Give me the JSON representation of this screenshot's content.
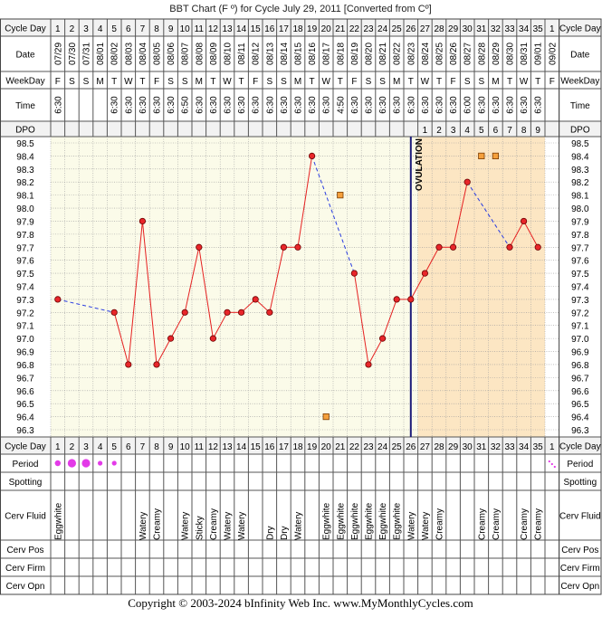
{
  "title": "BBT Chart (F º) for Cycle July 29, 2011  [Converted from Cº]",
  "footer": "Copyright © 2003-2024 bInfinity Web Inc.     www.MyMonthlyCycles.com",
  "row_labels": {
    "cycle_day": "Cycle Day",
    "date": "Date",
    "weekday": "WeekDay",
    "time": "Time",
    "dpo": "DPO",
    "period": "Period",
    "spotting": "Spotting",
    "cerv_fluid": "Cerv Fluid",
    "cerv_pos": "Cerv Pos",
    "cerv_firm": "Cerv Firm",
    "cerv_opn": "Cerv Opn"
  },
  "ovulation_label": "OVULATION",
  "colors": {
    "grid_bg": "#fbfbe9",
    "post_ov_bg": "#fce6c3",
    "line": "#e52020",
    "gap_line": "#2a3de0",
    "point_fill": "#e8262a",
    "marker_fill": "#f5a03c",
    "period_dot": "#e33ae8",
    "ovulation_line": "#1b1b7a"
  },
  "chart_data": {
    "type": "line",
    "title": "BBT Chart (F º) for Cycle July 29, 2011  [Converted from Cº]",
    "xlabel": "Cycle Day",
    "ylabel": "",
    "ylim": [
      96.3,
      98.5
    ],
    "y_ticks": [
      "98.5",
      "98.4",
      "98.3",
      "98.2",
      "98.1",
      "98.0",
      "97.9",
      "97.8",
      "97.7",
      "97.6",
      "97.5",
      "97.4",
      "97.3",
      "97.2",
      "97.1",
      "97.0",
      "96.9",
      "96.8",
      "96.7",
      "96.6",
      "96.5",
      "96.4",
      "96.3"
    ],
    "cycle_days": [
      "1",
      "2",
      "3",
      "4",
      "5",
      "6",
      "7",
      "8",
      "9",
      "10",
      "11",
      "12",
      "13",
      "14",
      "15",
      "16",
      "17",
      "18",
      "19",
      "20",
      "21",
      "22",
      "23",
      "24",
      "25",
      "26",
      "27",
      "28",
      "29",
      "30",
      "31",
      "32",
      "33",
      "34",
      "35",
      "1"
    ],
    "dates": [
      "07/29",
      "07/30",
      "07/31",
      "08/01",
      "08/02",
      "08/03",
      "08/04",
      "08/05",
      "08/06",
      "08/07",
      "08/08",
      "08/09",
      "08/10",
      "08/11",
      "08/12",
      "08/13",
      "08/14",
      "08/15",
      "08/16",
      "08/17",
      "08/18",
      "08/19",
      "08/20",
      "08/21",
      "08/22",
      "08/23",
      "08/24",
      "08/25",
      "08/26",
      "08/27",
      "08/28",
      "08/29",
      "08/30",
      "08/31",
      "09/01",
      "09/02"
    ],
    "weekdays": [
      "F",
      "S",
      "S",
      "M",
      "T",
      "W",
      "T",
      "F",
      "S",
      "S",
      "M",
      "T",
      "W",
      "T",
      "F",
      "S",
      "S",
      "M",
      "T",
      "W",
      "T",
      "F",
      "S",
      "S",
      "M",
      "T",
      "W",
      "T",
      "F",
      "S",
      "S",
      "M",
      "T",
      "W",
      "T",
      "F"
    ],
    "times": [
      "6:30",
      "",
      "",
      "",
      "6:30",
      "6:30",
      "6:30",
      "6:30",
      "6:30",
      "6:50",
      "6:30",
      "6:30",
      "6:30",
      "6:30",
      "6:30",
      "6:30",
      "6:30",
      "6:30",
      "6:30",
      "6:30",
      "4:50",
      "6:30",
      "6:30",
      "6:30",
      "6:30",
      "6:30",
      "6:30",
      "6:30",
      "6:30",
      "6:00",
      "6:30",
      "6:30",
      "6:30",
      "6:30",
      "6:30",
      ""
    ],
    "dpo": [
      "",
      "",
      "",
      "",
      "",
      "",
      "",
      "",
      "",
      "",
      "",
      "",
      "",
      "",
      "",
      "",
      "",
      "",
      "",
      "",
      "",
      "",
      "",
      "",
      "",
      "",
      "1",
      "2",
      "3",
      "4",
      "5",
      "6",
      "7",
      "8",
      "9",
      ""
    ],
    "series": [
      {
        "values": [
          97.3,
          null,
          null,
          null,
          97.2,
          96.8,
          97.9,
          96.8,
          97.0,
          97.2,
          97.7,
          97.0,
          97.2,
          97.2,
          97.3,
          97.2,
          97.7,
          97.7,
          98.4,
          null,
          null,
          97.5,
          96.8,
          97.0,
          97.3,
          97.3,
          97.5,
          97.7,
          97.7,
          98.2,
          null,
          null,
          97.7,
          97.9,
          97.7,
          null
        ]
      }
    ],
    "discarded_points": [
      {
        "day": 20,
        "value": 96.4
      },
      {
        "day": 21,
        "value": 98.1
      },
      {
        "day": 31,
        "value": 98.4
      },
      {
        "day": 32,
        "value": 98.4
      }
    ],
    "ovulation_day": 26,
    "period": [
      "medium",
      "heavy",
      "heavy",
      "light",
      "light",
      "",
      "",
      "",
      "",
      "",
      "",
      "",
      "",
      "",
      "",
      "",
      "",
      "",
      "",
      "",
      "",
      "",
      "",
      "",
      "",
      "",
      "",
      "",
      "",
      "",
      "",
      "",
      "",
      "",
      "",
      "spotting"
    ],
    "cerv_fluid": [
      "Eggwhite",
      "",
      "",
      "",
      "",
      "",
      "Watery",
      "Creamy",
      "",
      "Watery",
      "Sticky",
      "Creamy",
      "Watery",
      "Watery",
      "",
      "Dry",
      "Dry",
      "Watery",
      "",
      "Eggwhite",
      "Eggwhite",
      "Eggwhite",
      "Eggwhite",
      "Eggwhite",
      "Eggwhite",
      "Watery",
      "Watery",
      "Creamy",
      "",
      "",
      "Creamy",
      "Creamy",
      "",
      "Creamy",
      "Creamy",
      ""
    ]
  }
}
